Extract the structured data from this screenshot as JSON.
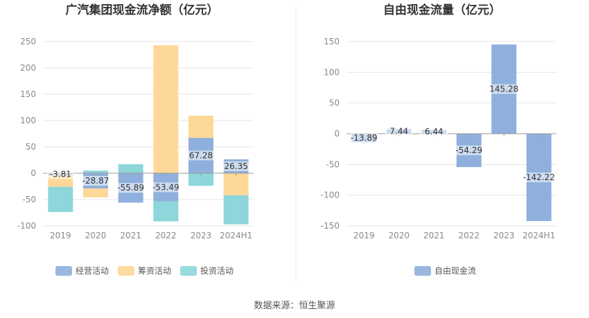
{
  "source": "数据来源：恒生聚源",
  "colors": {
    "operating": "#8fb0dc",
    "financing": "#fdd899",
    "investing": "#8dd6da",
    "fcf": "#8fb0dc",
    "grid": "#e4e4e4",
    "axis": "#999999"
  },
  "chart_data": [
    {
      "type": "bar",
      "stacked": true,
      "title": "广汽集团现金流净额（亿元）",
      "categories": [
        "2019",
        "2020",
        "2021",
        "2022",
        "2023",
        "2024H1"
      ],
      "ylim": [
        -100,
        250
      ],
      "yticks": [
        -100,
        -50,
        0,
        50,
        100,
        150,
        200,
        250
      ],
      "grid": true,
      "legend_position": "bottom",
      "series": [
        {
          "name": "经营活动",
          "color_key": "operating",
          "values": [
            -3.81,
            -28.87,
            -55.89,
            -53.49,
            67.28,
            26.35
          ]
        },
        {
          "name": "筹资活动",
          "color_key": "financing",
          "values": [
            -22,
            -17,
            0,
            243,
            42,
            -42
          ]
        },
        {
          "name": "投资活动",
          "color_key": "investing",
          "values": [
            -48,
            5,
            17,
            -38,
            -24,
            -55
          ]
        }
      ],
      "data_labels": [
        "-3.81",
        "-28.87",
        "-55.89",
        "-53.49",
        "67.28",
        "26.35"
      ]
    },
    {
      "type": "bar",
      "title": "自由现金流量（亿元）",
      "categories": [
        "2019",
        "2020",
        "2021",
        "2022",
        "2023",
        "2024H1"
      ],
      "ylim": [
        -150,
        150
      ],
      "yticks": [
        -150,
        -100,
        -50,
        0,
        50,
        100,
        150
      ],
      "grid": true,
      "legend_position": "bottom",
      "series": [
        {
          "name": "自由现金流",
          "color_key": "fcf",
          "values": [
            -13.89,
            7.44,
            6.44,
            -54.29,
            145.28,
            -142.22
          ]
        }
      ],
      "data_labels": [
        "-13.89",
        "7.44",
        "6.44",
        "-54.29",
        "145.28",
        "-142.22"
      ]
    }
  ]
}
